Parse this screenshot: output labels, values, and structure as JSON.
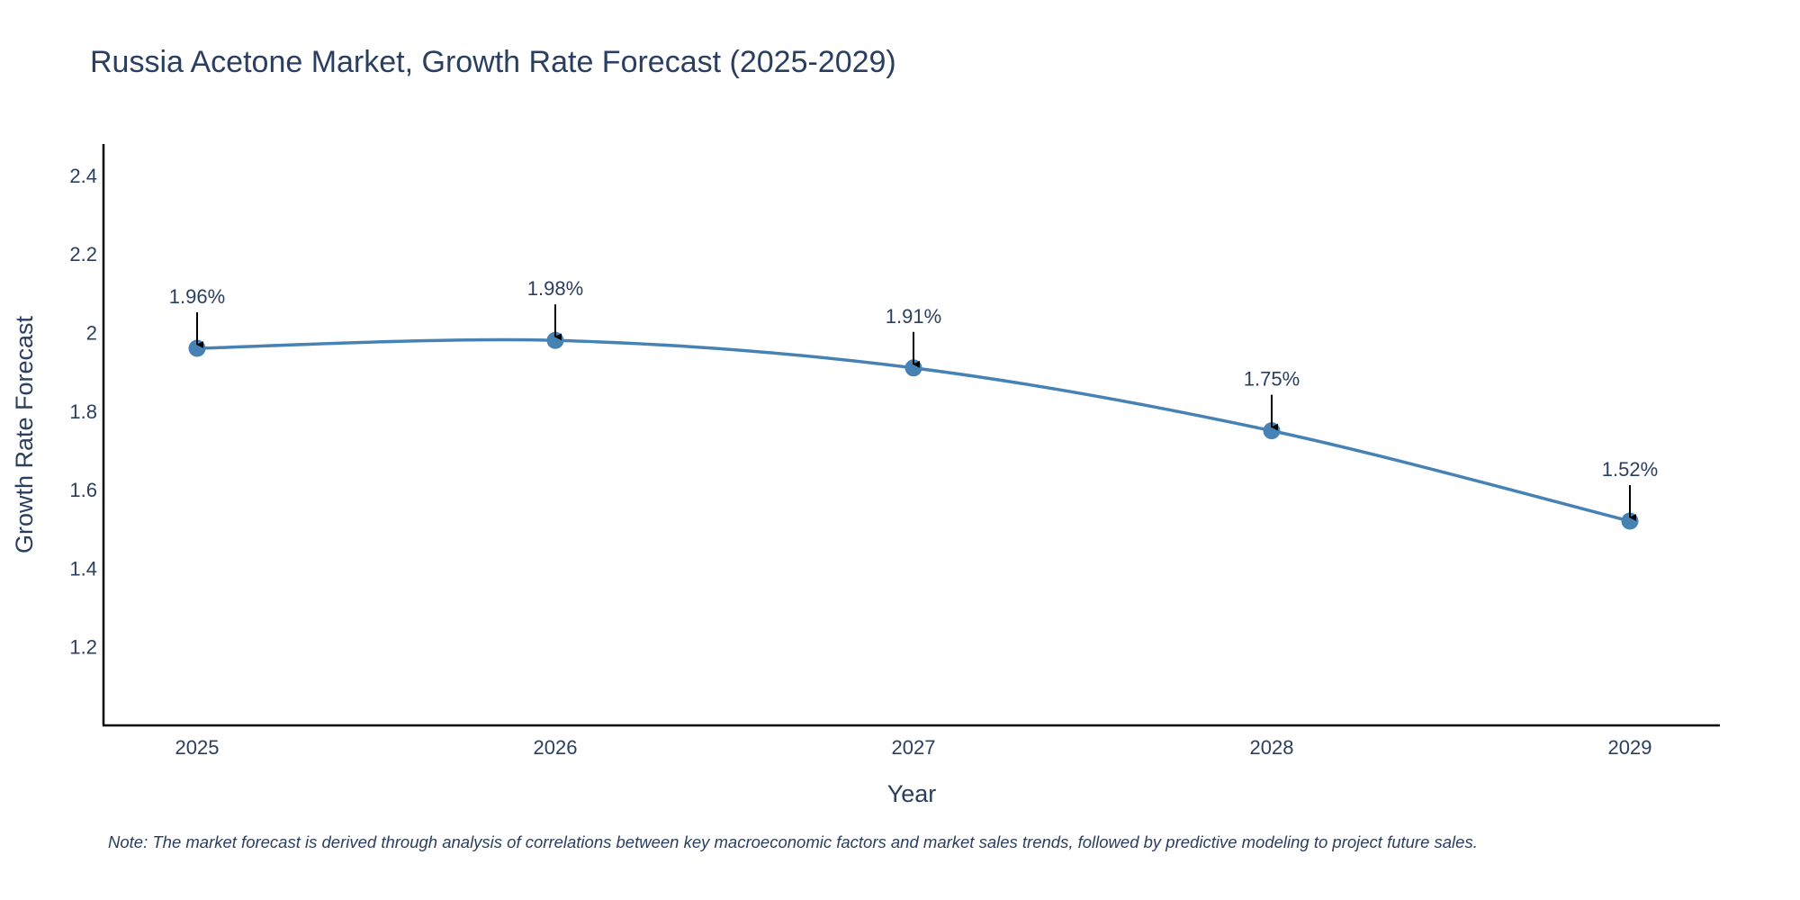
{
  "chart_data": {
    "type": "line",
    "title": "Russia Acetone Market, Growth Rate Forecast (2025-2029)",
    "xlabel": "Year",
    "ylabel": "Growth Rate Forecast",
    "categories": [
      "2025",
      "2026",
      "2027",
      "2028",
      "2029"
    ],
    "series": [
      {
        "name": "Growth Rate Forecast",
        "values": [
          1.96,
          1.98,
          1.91,
          1.75,
          1.52
        ],
        "labels": [
          "1.96%",
          "1.98%",
          "1.91%",
          "1.75%",
          "1.52%"
        ]
      }
    ],
    "ylim": [
      1.0,
      2.48
    ],
    "yticks": [
      1.2,
      1.4,
      1.6,
      1.8,
      2,
      2.2,
      2.4
    ],
    "ytick_labels": [
      "1.2",
      "1.4",
      "1.6",
      "1.8",
      "2",
      "2.2",
      "2.4"
    ],
    "grid": false,
    "line_color": "#4682b4",
    "annotation_arrows": true
  },
  "note": "Note: The market forecast is derived through analysis of correlations between key macroeconomic factors and market sales trends, followed by predictive modeling to project future sales."
}
